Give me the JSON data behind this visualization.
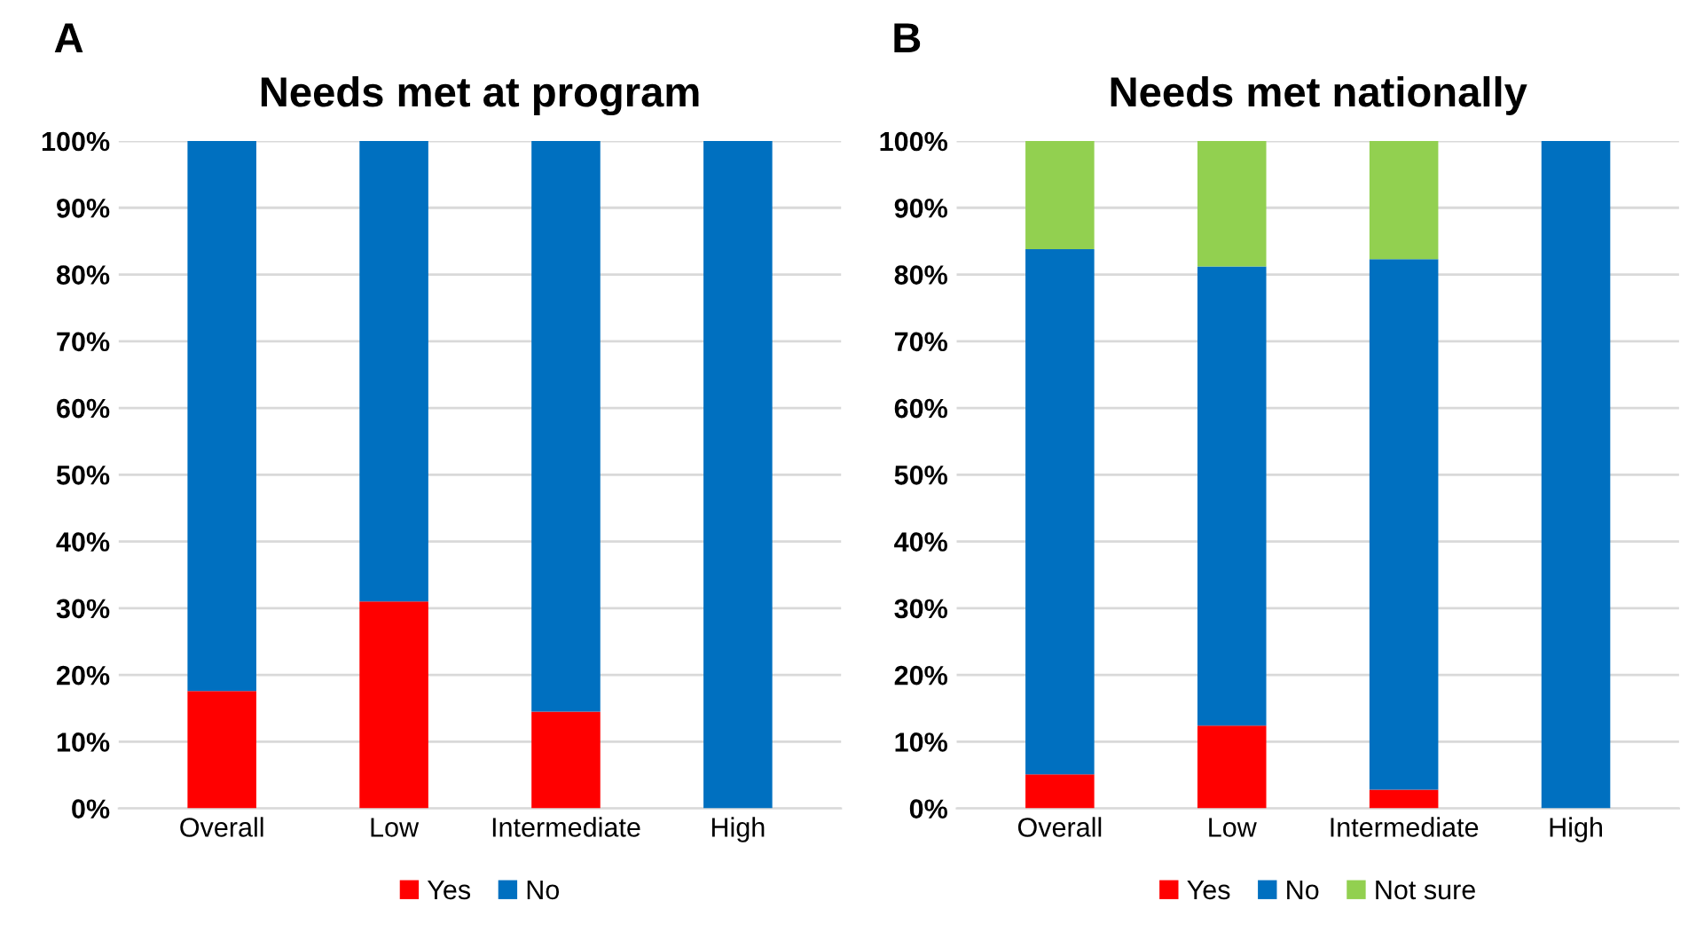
{
  "chart_data": [
    {
      "type": "bar",
      "title": "Needs met at program",
      "annotations": [
        "A"
      ],
      "stacked": true,
      "categories": [
        "Overall",
        "Low",
        "Intermediate",
        "High"
      ],
      "series": [
        {
          "name": "Yes",
          "color": "#ff0000",
          "values": [
            17.6,
            31.0,
            14.5,
            0
          ]
        },
        {
          "name": "No",
          "color": "#0070c0",
          "values": [
            82.4,
            69.0,
            85.5,
            100
          ]
        }
      ],
      "ylim": [
        0,
        100
      ],
      "yticks": [
        {
          "value": 0,
          "label": "0%"
        },
        {
          "value": 10,
          "label": "10%"
        },
        {
          "value": 20,
          "label": "20%"
        },
        {
          "value": 30,
          "label": "30%"
        },
        {
          "value": 40,
          "label": "40%"
        },
        {
          "value": 50,
          "label": "50%"
        },
        {
          "value": 60,
          "label": "60%"
        },
        {
          "value": 70,
          "label": "70%"
        },
        {
          "value": 80,
          "label": "80%"
        },
        {
          "value": 90,
          "label": "90%"
        },
        {
          "value": 100,
          "label": "100%"
        }
      ],
      "grid": "y",
      "legend": "bottom"
    },
    {
      "type": "bar",
      "title": "Needs met nationally",
      "annotations": [
        "B"
      ],
      "stacked": true,
      "categories": [
        "Overall",
        "Low",
        "Intermediate",
        "High"
      ],
      "series": [
        {
          "name": "Yes",
          "color": "#ff0000",
          "values": [
            5.1,
            12.4,
            2.8,
            0
          ]
        },
        {
          "name": "No",
          "color": "#0070c0",
          "values": [
            78.7,
            68.8,
            79.5,
            100
          ]
        },
        {
          "name": "Not sure",
          "color": "#92d050",
          "values": [
            16.2,
            18.8,
            17.7,
            0
          ]
        }
      ],
      "ylim": [
        0,
        100
      ],
      "yticks": [
        {
          "value": 0,
          "label": "0%"
        },
        {
          "value": 10,
          "label": "10%"
        },
        {
          "value": 20,
          "label": "20%"
        },
        {
          "value": 30,
          "label": "30%"
        },
        {
          "value": 40,
          "label": "40%"
        },
        {
          "value": 50,
          "label": "50%"
        },
        {
          "value": 60,
          "label": "60%"
        },
        {
          "value": 70,
          "label": "70%"
        },
        {
          "value": 80,
          "label": "80%"
        },
        {
          "value": 90,
          "label": "90%"
        },
        {
          "value": 100,
          "label": "100%"
        }
      ],
      "grid": "y",
      "legend": "bottom"
    }
  ]
}
